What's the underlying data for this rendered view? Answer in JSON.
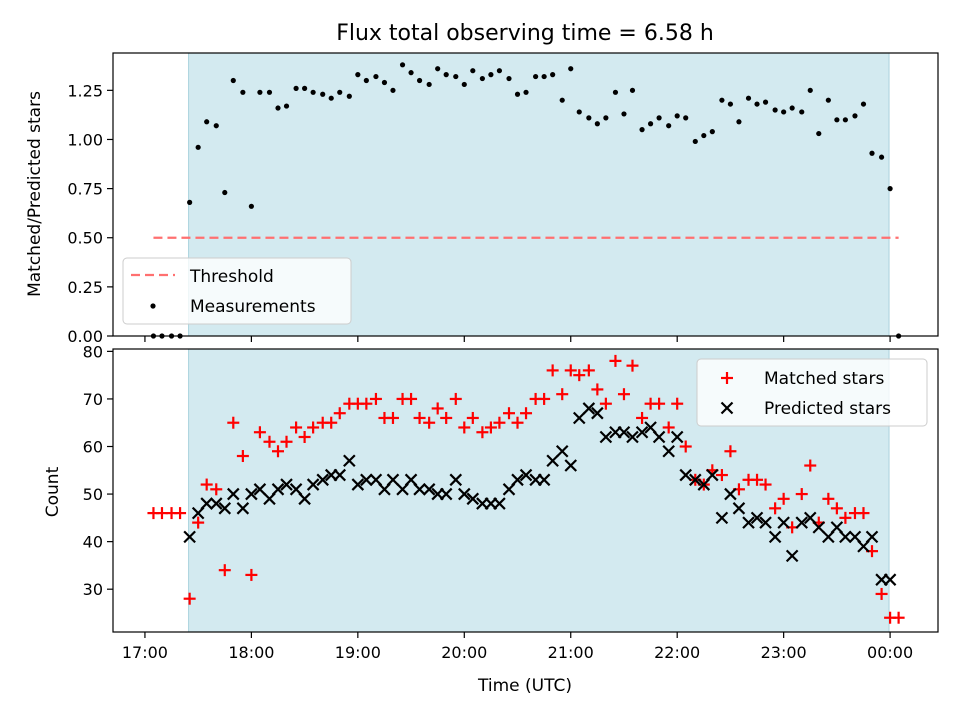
{
  "chart_data": [
    {
      "type": "scatter",
      "title": "Flux total observing time = 6.58 h",
      "xlabel": "",
      "ylabel": "Matched/Predicted stars",
      "xlim": [
        16.7,
        24.45
      ],
      "ylim": [
        0,
        1.44
      ],
      "yticks": [
        "0.00",
        "0.25",
        "0.50",
        "0.75",
        "1.00",
        "1.25"
      ],
      "ytick_values": [
        0,
        0.25,
        0.5,
        0.75,
        1.0,
        1.25
      ],
      "grid": false,
      "legend_position": "lower-left",
      "observing_window": [
        17.41,
        23.99
      ],
      "window_color": "#d3eaf0",
      "threshold": {
        "name": "Threshold",
        "value": 0.5,
        "x_range": [
          17.08,
          24.08
        ],
        "color": "#ff7070"
      },
      "series": [
        {
          "name": "Measurements",
          "color": "#000000",
          "points": [
            [
              17.08,
              0
            ],
            [
              17.16,
              0
            ],
            [
              17.25,
              0
            ],
            [
              17.33,
              0
            ],
            [
              17.42,
              0.68
            ],
            [
              17.5,
              0.96
            ],
            [
              17.58,
              1.09
            ],
            [
              17.67,
              1.07
            ],
            [
              17.75,
              0.73
            ],
            [
              17.83,
              1.3
            ],
            [
              17.92,
              1.24
            ],
            [
              18.0,
              0.66
            ],
            [
              18.08,
              1.24
            ],
            [
              18.17,
              1.24
            ],
            [
              18.25,
              1.16
            ],
            [
              18.33,
              1.17
            ],
            [
              18.42,
              1.26
            ],
            [
              18.5,
              1.26
            ],
            [
              18.58,
              1.24
            ],
            [
              18.67,
              1.23
            ],
            [
              18.75,
              1.21
            ],
            [
              18.83,
              1.24
            ],
            [
              18.92,
              1.22
            ],
            [
              19.0,
              1.33
            ],
            [
              19.08,
              1.3
            ],
            [
              19.17,
              1.32
            ],
            [
              19.25,
              1.29
            ],
            [
              19.33,
              1.25
            ],
            [
              19.42,
              1.38
            ],
            [
              19.5,
              1.34
            ],
            [
              19.58,
              1.3
            ],
            [
              19.67,
              1.28
            ],
            [
              19.75,
              1.36
            ],
            [
              19.83,
              1.33
            ],
            [
              19.92,
              1.32
            ],
            [
              20.0,
              1.28
            ],
            [
              20.08,
              1.35
            ],
            [
              20.17,
              1.31
            ],
            [
              20.25,
              1.33
            ],
            [
              20.33,
              1.35
            ],
            [
              20.42,
              1.31
            ],
            [
              20.5,
              1.23
            ],
            [
              20.58,
              1.24
            ],
            [
              20.67,
              1.32
            ],
            [
              20.75,
              1.32
            ],
            [
              20.83,
              1.33
            ],
            [
              20.92,
              1.2
            ],
            [
              21.0,
              1.36
            ],
            [
              21.08,
              1.14
            ],
            [
              21.17,
              1.11
            ],
            [
              21.25,
              1.08
            ],
            [
              21.33,
              1.11
            ],
            [
              21.42,
              1.24
            ],
            [
              21.5,
              1.13
            ],
            [
              21.58,
              1.25
            ],
            [
              21.67,
              1.05
            ],
            [
              21.75,
              1.08
            ],
            [
              21.83,
              1.11
            ],
            [
              21.92,
              1.07
            ],
            [
              22.0,
              1.12
            ],
            [
              22.08,
              1.11
            ],
            [
              22.17,
              0.99
            ],
            [
              22.25,
              1.02
            ],
            [
              22.33,
              1.04
            ],
            [
              22.42,
              1.2
            ],
            [
              22.5,
              1.18
            ],
            [
              22.58,
              1.09
            ],
            [
              22.67,
              1.21
            ],
            [
              22.75,
              1.18
            ],
            [
              22.83,
              1.19
            ],
            [
              22.92,
              1.15
            ],
            [
              23.0,
              1.14
            ],
            [
              23.08,
              1.16
            ],
            [
              23.17,
              1.14
            ],
            [
              23.25,
              1.25
            ],
            [
              23.33,
              1.03
            ],
            [
              23.42,
              1.2
            ],
            [
              23.5,
              1.1
            ],
            [
              23.58,
              1.1
            ],
            [
              23.67,
              1.12
            ],
            [
              23.75,
              1.18
            ],
            [
              23.83,
              0.93
            ],
            [
              23.92,
              0.91
            ],
            [
              24.0,
              0.75
            ],
            [
              24.08,
              0
            ]
          ]
        }
      ]
    },
    {
      "type": "scatter",
      "title": "",
      "xlabel": "Time (UTC)",
      "ylabel": "Count",
      "xlim": [
        16.7,
        24.45
      ],
      "ylim": [
        21,
        80.5
      ],
      "xticks": [
        "17:00",
        "18:00",
        "19:00",
        "20:00",
        "21:00",
        "22:00",
        "23:00",
        "00:00"
      ],
      "xtick_values": [
        17,
        18,
        19,
        20,
        21,
        22,
        23,
        24
      ],
      "yticks": [
        "30",
        "40",
        "50",
        "60",
        "70",
        "80"
      ],
      "ytick_values": [
        30,
        40,
        50,
        60,
        70,
        80
      ],
      "grid": false,
      "legend_position": "top-right",
      "observing_window": [
        17.41,
        23.99
      ],
      "window_color": "#d3eaf0",
      "series": [
        {
          "name": "Matched stars",
          "marker": "plus",
          "color": "#ff0000",
          "points": [
            [
              17.08,
              46
            ],
            [
              17.16,
              46
            ],
            [
              17.25,
              46
            ],
            [
              17.33,
              46
            ],
            [
              17.42,
              28
            ],
            [
              17.5,
              44
            ],
            [
              17.58,
              52
            ],
            [
              17.67,
              51
            ],
            [
              17.75,
              34
            ],
            [
              17.83,
              65
            ],
            [
              17.92,
              58
            ],
            [
              18.0,
              33
            ],
            [
              18.08,
              63
            ],
            [
              18.17,
              61
            ],
            [
              18.25,
              59
            ],
            [
              18.33,
              61
            ],
            [
              18.42,
              64
            ],
            [
              18.5,
              62
            ],
            [
              18.58,
              64
            ],
            [
              18.67,
              65
            ],
            [
              18.75,
              65
            ],
            [
              18.83,
              67
            ],
            [
              18.92,
              69
            ],
            [
              19.0,
              69
            ],
            [
              19.08,
              69
            ],
            [
              19.17,
              70
            ],
            [
              19.25,
              66
            ],
            [
              19.33,
              66
            ],
            [
              19.42,
              70
            ],
            [
              19.5,
              70
            ],
            [
              19.58,
              66
            ],
            [
              19.67,
              65
            ],
            [
              19.75,
              68
            ],
            [
              19.83,
              66
            ],
            [
              19.92,
              70
            ],
            [
              20.0,
              64
            ],
            [
              20.08,
              66
            ],
            [
              20.17,
              63
            ],
            [
              20.25,
              64
            ],
            [
              20.33,
              65
            ],
            [
              20.42,
              67
            ],
            [
              20.5,
              65
            ],
            [
              20.58,
              67
            ],
            [
              20.67,
              70
            ],
            [
              20.75,
              70
            ],
            [
              20.83,
              76
            ],
            [
              20.92,
              71
            ],
            [
              21.0,
              76
            ],
            [
              21.08,
              75
            ],
            [
              21.17,
              76
            ],
            [
              21.25,
              72
            ],
            [
              21.33,
              69
            ],
            [
              21.42,
              78
            ],
            [
              21.5,
              71
            ],
            [
              21.58,
              77
            ],
            [
              21.67,
              66
            ],
            [
              21.75,
              69
            ],
            [
              21.83,
              69
            ],
            [
              21.92,
              64
            ],
            [
              22.0,
              69
            ],
            [
              22.08,
              60
            ],
            [
              22.17,
              53
            ],
            [
              22.25,
              52
            ],
            [
              22.33,
              55
            ],
            [
              22.42,
              54
            ],
            [
              22.5,
              59
            ],
            [
              22.58,
              51
            ],
            [
              22.67,
              53
            ],
            [
              22.75,
              53
            ],
            [
              22.83,
              52
            ],
            [
              22.92,
              47
            ],
            [
              23.0,
              49
            ],
            [
              23.08,
              43
            ],
            [
              23.17,
              50
            ],
            [
              23.25,
              56
            ],
            [
              23.33,
              44
            ],
            [
              23.42,
              49
            ],
            [
              23.5,
              47
            ],
            [
              23.58,
              45
            ],
            [
              23.67,
              46
            ],
            [
              23.75,
              46
            ],
            [
              23.83,
              38
            ],
            [
              23.92,
              29
            ],
            [
              24.0,
              24
            ],
            [
              24.08,
              24
            ]
          ]
        },
        {
          "name": "Predicted stars",
          "marker": "cross",
          "color": "#000000",
          "points": [
            [
              17.42,
              41
            ],
            [
              17.5,
              46
            ],
            [
              17.58,
              48
            ],
            [
              17.67,
              48
            ],
            [
              17.75,
              47
            ],
            [
              17.83,
              50
            ],
            [
              17.92,
              47
            ],
            [
              18.0,
              50
            ],
            [
              18.08,
              51
            ],
            [
              18.17,
              49
            ],
            [
              18.25,
              51
            ],
            [
              18.33,
              52
            ],
            [
              18.42,
              51
            ],
            [
              18.5,
              49
            ],
            [
              18.58,
              52
            ],
            [
              18.67,
              53
            ],
            [
              18.75,
              54
            ],
            [
              18.83,
              54
            ],
            [
              18.92,
              57
            ],
            [
              19.0,
              52
            ],
            [
              19.08,
              53
            ],
            [
              19.17,
              53
            ],
            [
              19.25,
              51
            ],
            [
              19.33,
              53
            ],
            [
              19.42,
              51
            ],
            [
              19.5,
              53
            ],
            [
              19.58,
              51
            ],
            [
              19.67,
              51
            ],
            [
              19.75,
              50
            ],
            [
              19.83,
              50
            ],
            [
              19.92,
              53
            ],
            [
              20.0,
              50
            ],
            [
              20.08,
              49
            ],
            [
              20.17,
              48
            ],
            [
              20.25,
              48
            ],
            [
              20.33,
              48
            ],
            [
              20.42,
              51
            ],
            [
              20.5,
              53
            ],
            [
              20.58,
              54
            ],
            [
              20.67,
              53
            ],
            [
              20.75,
              53
            ],
            [
              20.83,
              57
            ],
            [
              20.92,
              59
            ],
            [
              21.0,
              56
            ],
            [
              21.08,
              66
            ],
            [
              21.17,
              68
            ],
            [
              21.25,
              67
            ],
            [
              21.33,
              62
            ],
            [
              21.42,
              63
            ],
            [
              21.5,
              63
            ],
            [
              21.58,
              62
            ],
            [
              21.67,
              63
            ],
            [
              21.75,
              64
            ],
            [
              21.83,
              62
            ],
            [
              21.92,
              59
            ],
            [
              22.0,
              62
            ],
            [
              22.08,
              54
            ],
            [
              22.17,
              53
            ],
            [
              22.25,
              52
            ],
            [
              22.33,
              54
            ],
            [
              22.42,
              45
            ],
            [
              22.5,
              50
            ],
            [
              22.58,
              47
            ],
            [
              22.67,
              44
            ],
            [
              22.75,
              45
            ],
            [
              22.83,
              44
            ],
            [
              22.92,
              41
            ],
            [
              23.0,
              44
            ],
            [
              23.08,
              37
            ],
            [
              23.17,
              44
            ],
            [
              23.25,
              45
            ],
            [
              23.33,
              43
            ],
            [
              23.42,
              41
            ],
            [
              23.5,
              43
            ],
            [
              23.58,
              41
            ],
            [
              23.67,
              41
            ],
            [
              23.75,
              39
            ],
            [
              23.83,
              41
            ],
            [
              23.92,
              32
            ],
            [
              24.0,
              32
            ]
          ]
        }
      ]
    }
  ]
}
